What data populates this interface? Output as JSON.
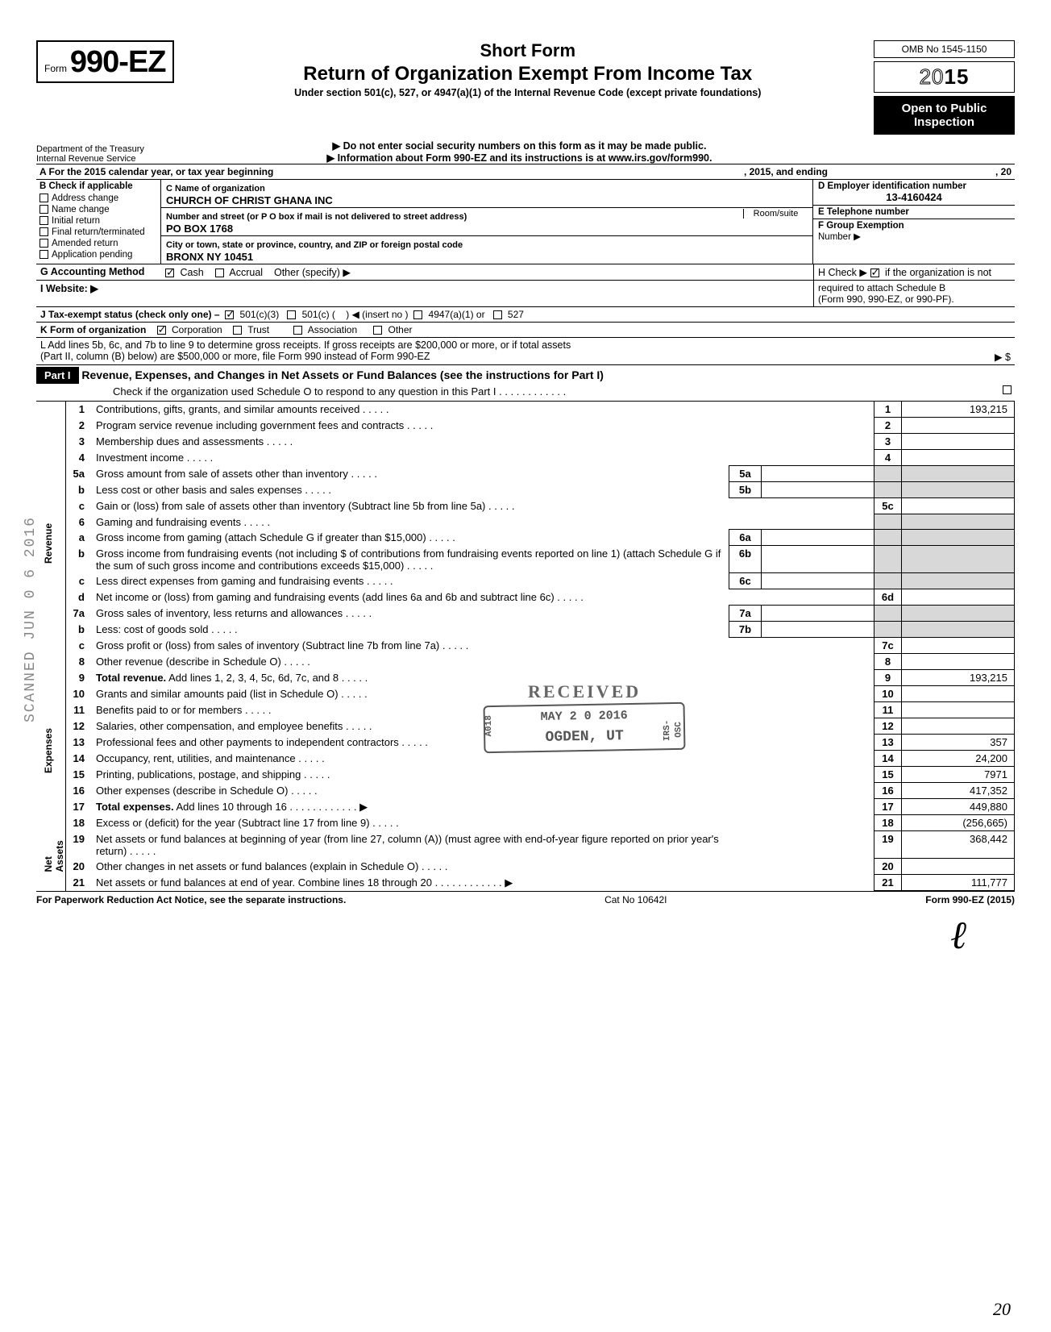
{
  "header": {
    "form_prefix": "Form",
    "form_number": "990-EZ",
    "short_form": "Short Form",
    "main_title": "Return of Organization Exempt From Income Tax",
    "subtitle": "Under section 501(c), 527, or 4947(a)(1) of the Internal Revenue Code (except private foundations)",
    "notice1": "▶ Do not enter social security numbers on this form as it may be made public.",
    "notice2": "▶ Information about Form 990-EZ and its instructions is at www.irs.gov/form990.",
    "dept1": "Department of the Treasury",
    "dept2": "Internal Revenue Service",
    "omb": "OMB No 1545-1150",
    "year": "2015",
    "public1": "Open to Public",
    "public2": "Inspection"
  },
  "rowA": {
    "label": "A  For the 2015 calendar year, or tax year beginning",
    "mid": ", 2015, and ending",
    "end": ", 20"
  },
  "sectionB": {
    "header": "B  Check if applicable",
    "opts": [
      "Address change",
      "Name change",
      "Initial return",
      "Final return/terminated",
      "Amended return",
      "Application pending"
    ]
  },
  "sectionC": {
    "name_lbl": "C  Name of organization",
    "name": "CHURCH OF CHRIST GHANA INC",
    "addr_lbl": "Number and street (or P O box  if mail is not delivered to street address)",
    "room_lbl": "Room/suite",
    "addr": "PO BOX 1768",
    "city_lbl": "City or town, state or province, country, and ZIP or foreign postal code",
    "city": "BRONX  NY  10451"
  },
  "sectionD": {
    "lbl": "D Employer identification number",
    "val": "13-4160424"
  },
  "sectionE": {
    "lbl": "E Telephone number",
    "val": ""
  },
  "sectionF": {
    "lbl": "F  Group Exemption",
    "lbl2": "Number ▶",
    "val": ""
  },
  "rowG": {
    "lbl": "G  Accounting Method",
    "cash": "Cash",
    "accrual": "Accrual",
    "other": "Other (specify) ▶"
  },
  "rowH": {
    "txt1": "H  Check ▶",
    "txt2": "if the organization is not",
    "txt3": "required to attach Schedule B",
    "txt4": "(Form 990, 990-EZ, or 990-PF)."
  },
  "rowI": {
    "lbl": "I   Website: ▶"
  },
  "rowJ": {
    "lbl": "J  Tax-exempt status (check only one) –",
    "a": "501(c)(3)",
    "b": "501(c) (",
    "c": ") ◀ (insert no )",
    "d": "4947(a)(1) or",
    "e": "527"
  },
  "rowK": {
    "lbl": "K  Form of organization",
    "a": "Corporation",
    "b": "Trust",
    "c": "Association",
    "d": "Other"
  },
  "rowL": {
    "l1": "L  Add lines 5b, 6c, and 7b to line 9 to determine gross receipts. If gross receipts are $200,000 or more, or if total assets",
    "l2": "(Part II, column (B) below) are $500,000 or more, file Form 990 instead of Form 990-EZ",
    "arrow": "▶  $"
  },
  "part1": {
    "tag": "Part I",
    "title": "Revenue, Expenses, and Changes in Net Assets or Fund Balances (see the instructions for Part I)",
    "sub": "Check if the organization used Schedule O to respond to any question in this Part I  .   .   .   .   .   .   .   .   .   .   .   ."
  },
  "sides": {
    "rev": "Revenue",
    "exp": "Expenses",
    "net": "Net Assets"
  },
  "lines": [
    {
      "n": "1",
      "d": "Contributions, gifts, grants, and similar amounts received",
      "rn": "1",
      "rv": "193,215"
    },
    {
      "n": "2",
      "d": "Program service revenue including government fees and contracts",
      "rn": "2",
      "rv": ""
    },
    {
      "n": "3",
      "d": "Membership dues and assessments",
      "rn": "3",
      "rv": ""
    },
    {
      "n": "4",
      "d": "Investment income",
      "rn": "4",
      "rv": ""
    },
    {
      "n": "5a",
      "d": "Gross amount from sale of assets other than inventory",
      "sb": "5a"
    },
    {
      "n": "b",
      "d": "Less  cost or other basis and sales expenses",
      "sb": "5b"
    },
    {
      "n": "c",
      "d": "Gain or (loss) from sale of assets other than inventory (Subtract line 5b from line 5a)",
      "rn": "5c",
      "rv": ""
    },
    {
      "n": "6",
      "d": "Gaming and fundraising events"
    },
    {
      "n": "a",
      "d": "Gross income from gaming (attach Schedule G if greater than $15,000)",
      "sb": "6a"
    },
    {
      "n": "b",
      "d": "Gross income from fundraising events (not including  $                           of contributions from fundraising events reported on line 1) (attach Schedule G if the sum of such gross income and contributions exceeds $15,000)",
      "sb": "6b"
    },
    {
      "n": "c",
      "d": "Less  direct expenses from gaming and fundraising events",
      "sb": "6c"
    },
    {
      "n": "d",
      "d": "Net income or (loss) from gaming and fundraising events (add lines 6a and 6b and subtract line 6c)",
      "rn": "6d",
      "rv": ""
    },
    {
      "n": "7a",
      "d": "Gross sales of inventory, less returns and allowances",
      "sb": "7a"
    },
    {
      "n": "b",
      "d": "Less: cost of goods sold",
      "sb": "7b"
    },
    {
      "n": "c",
      "d": "Gross profit or (loss) from sales of inventory (Subtract line 7b from line 7a)",
      "rn": "7c",
      "rv": ""
    },
    {
      "n": "8",
      "d": "Other revenue (describe in Schedule O)",
      "rn": "8",
      "rv": ""
    },
    {
      "n": "9",
      "d": "Total revenue. Add lines 1, 2, 3, 4, 5c, 6d, 7c, and 8",
      "rn": "9",
      "rv": "193,215",
      "bold": true
    }
  ],
  "exp_lines": [
    {
      "n": "10",
      "d": "Grants and similar amounts paid (list in Schedule O)",
      "rn": "10",
      "rv": ""
    },
    {
      "n": "11",
      "d": "Benefits paid to or for members",
      "rn": "11",
      "rv": ""
    },
    {
      "n": "12",
      "d": "Salaries, other compensation, and employee benefits",
      "rn": "12",
      "rv": ""
    },
    {
      "n": "13",
      "d": "Professional fees and other payments to independent contractors",
      "rn": "13",
      "rv": "357"
    },
    {
      "n": "14",
      "d": "Occupancy, rent, utilities, and maintenance",
      "rn": "14",
      "rv": "24,200"
    },
    {
      "n": "15",
      "d": "Printing, publications, postage, and shipping",
      "rn": "15",
      "rv": "7971"
    },
    {
      "n": "16",
      "d": "Other expenses (describe in Schedule O)",
      "rn": "16",
      "rv": "417,352"
    },
    {
      "n": "17",
      "d": "Total expenses. Add lines 10 through 16",
      "rn": "17",
      "rv": "449,880",
      "bold": true,
      "arrow": true
    }
  ],
  "net_lines": [
    {
      "n": "18",
      "d": "Excess or (deficit) for the year (Subtract line 17 from line 9)",
      "rn": "18",
      "rv": "(256,665)"
    },
    {
      "n": "19",
      "d": "Net assets or fund balances at beginning of year (from line 27, column (A)) (must agree with end-of-year figure reported on prior year's return)",
      "rn": "19",
      "rv": "368,442"
    },
    {
      "n": "20",
      "d": "Other changes in net assets or fund balances (explain in Schedule O)",
      "rn": "20",
      "rv": ""
    },
    {
      "n": "21",
      "d": "Net assets or fund balances at end of year. Combine lines 18 through 20",
      "rn": "21",
      "rv": "111,777",
      "arrow": true
    }
  ],
  "stamps": {
    "received": "RECEIVED",
    "date": "MAY 2 0 2016",
    "ogden": "OGDEN, UT",
    "scanned": "SCANNED JUN 0 6 2016"
  },
  "footer": {
    "left": "For Paperwork Reduction Act Notice, see the separate instructions.",
    "mid": "Cat No 10642I",
    "right": "Form 990-EZ (2015)"
  },
  "sig": "ℓ",
  "page_no": "20",
  "colors": {
    "black": "#000000",
    "shade": "#d8d8d8",
    "stamp": "#555555"
  }
}
